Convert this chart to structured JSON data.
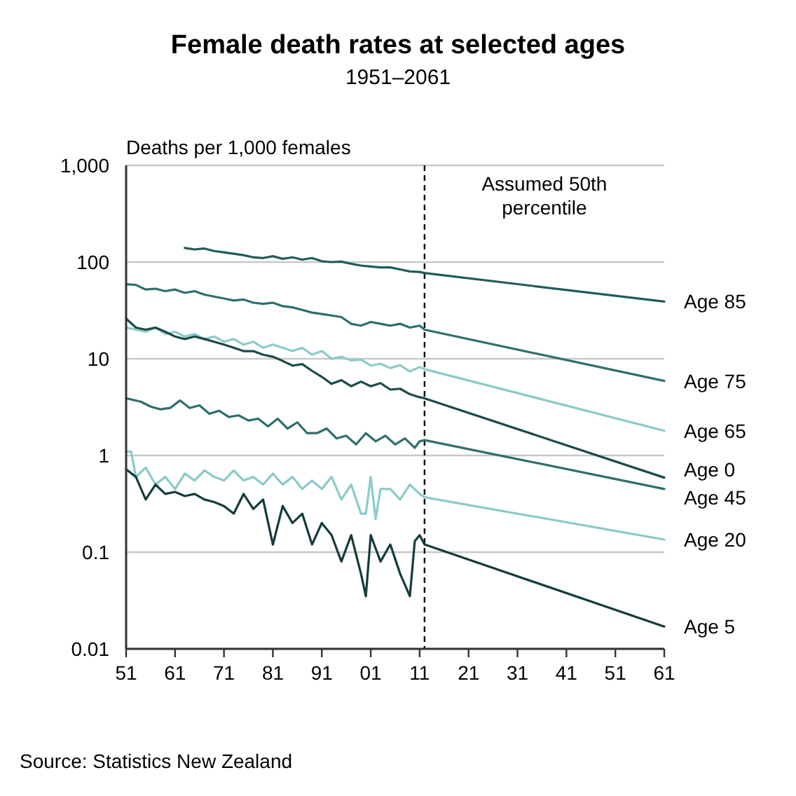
{
  "chart_data": {
    "type": "line",
    "title": "Female death rates at selected ages",
    "subtitle": "1951–2061",
    "ylabel": "Deaths per 1,000 females",
    "log": true,
    "grid": "y",
    "xlim": [
      1951,
      2061
    ],
    "xticks": [
      {
        "value": 1951,
        "label": "51"
      },
      {
        "value": 1961,
        "label": "61"
      },
      {
        "value": 1971,
        "label": "71"
      },
      {
        "value": 1981,
        "label": "81"
      },
      {
        "value": 1991,
        "label": "91"
      },
      {
        "value": 2001,
        "label": "01"
      },
      {
        "value": 2011,
        "label": "11"
      },
      {
        "value": 2021,
        "label": "21"
      },
      {
        "value": 2031,
        "label": "31"
      },
      {
        "value": 2041,
        "label": "41"
      },
      {
        "value": 2051,
        "label": "51"
      },
      {
        "value": 2061,
        "label": "61"
      }
    ],
    "ylim": [
      0.01,
      1000
    ],
    "yticks": [
      0.01,
      0.1,
      1,
      10,
      100,
      {
        "value": 1000,
        "label": "1,000"
      }
    ],
    "ref_lines": [
      {
        "axis": "x",
        "value": 2012,
        "label": "Assumed 50th percentile",
        "line_style": "dashed",
        "color": "#000000"
      }
    ],
    "annotations": [
      "Source: Statistics New Zealand"
    ],
    "series": [
      {
        "name": "Age 85",
        "color": "#1f5c5c",
        "x": [
          1963,
          1965,
          1967,
          1969,
          1971,
          1973,
          1975,
          1977,
          1979,
          1981,
          1983,
          1985,
          1987,
          1989,
          1991,
          1993,
          1995,
          1997,
          1999,
          2001,
          2003,
          2005,
          2007,
          2009,
          2011,
          2012,
          2061
        ],
        "values": [
          140,
          135,
          138,
          130,
          126,
          122,
          118,
          112,
          110,
          115,
          108,
          112,
          106,
          110,
          102,
          100,
          101,
          96,
          92,
          90,
          88,
          88,
          84,
          80,
          79,
          77,
          39
        ]
      },
      {
        "name": "Age 75",
        "color": "#2f6e6e",
        "x": [
          1951,
          1953,
          1955,
          1957,
          1959,
          1961,
          1963,
          1965,
          1967,
          1969,
          1971,
          1973,
          1975,
          1977,
          1979,
          1981,
          1983,
          1985,
          1987,
          1989,
          1991,
          1993,
          1995,
          1997,
          1999,
          2001,
          2003,
          2005,
          2007,
          2009,
          2011,
          2012,
          2061
        ],
        "values": [
          59,
          58,
          52,
          53,
          50,
          52,
          48,
          50,
          46,
          44,
          42,
          40,
          41,
          38,
          37,
          38,
          35,
          34,
          32,
          30,
          29,
          28,
          27,
          23,
          22,
          24,
          23,
          22,
          23,
          21,
          22,
          20,
          5.9
        ]
      },
      {
        "name": "Age 65",
        "color": "#8ccaca",
        "x": [
          1951,
          1953,
          1955,
          1957,
          1959,
          1961,
          1963,
          1965,
          1967,
          1969,
          1971,
          1973,
          1975,
          1977,
          1979,
          1981,
          1983,
          1985,
          1987,
          1989,
          1991,
          1993,
          1995,
          1997,
          1999,
          2001,
          2003,
          2005,
          2007,
          2009,
          2011,
          2012,
          2061
        ],
        "values": [
          21,
          20,
          19,
          21,
          18,
          19,
          17,
          18,
          16,
          17,
          15,
          16,
          14,
          15,
          13,
          14,
          13,
          12,
          13,
          11,
          12,
          10,
          10.5,
          9.6,
          9.8,
          8.5,
          8.9,
          8,
          8.6,
          7.4,
          8.2,
          7.8,
          1.8
        ]
      },
      {
        "name": "Age 0",
        "color": "#1a4a4a",
        "x": [
          1951,
          1953,
          1955,
          1957,
          1959,
          1961,
          1963,
          1965,
          1967,
          1969,
          1971,
          1973,
          1975,
          1977,
          1979,
          1981,
          1983,
          1985,
          1987,
          1989,
          1991,
          1993,
          1995,
          1997,
          1999,
          2001,
          2003,
          2005,
          2007,
          2009,
          2011,
          2012,
          2061
        ],
        "values": [
          26,
          21,
          20,
          21,
          19,
          17,
          16,
          17,
          16,
          15,
          14,
          13,
          12,
          12,
          11,
          10.5,
          9.5,
          8.5,
          8.8,
          7.5,
          6.5,
          5.5,
          6,
          5.2,
          5.8,
          5.2,
          5.6,
          4.8,
          4.9,
          4.3,
          4,
          3.9,
          0.59
        ]
      },
      {
        "name": "Age 45",
        "color": "#2f6e6e",
        "x": [
          1951,
          1954,
          1956,
          1958,
          1960,
          1962,
          1964,
          1966,
          1968,
          1970,
          1972,
          1974,
          1976,
          1978,
          1980,
          1982,
          1984,
          1986,
          1988,
          1990,
          1992,
          1994,
          1996,
          1998,
          2000,
          2002,
          2004,
          2006,
          2008,
          2010,
          2011,
          2012,
          2061
        ],
        "values": [
          3.9,
          3.6,
          3.2,
          3,
          3.1,
          3.7,
          3.1,
          3.3,
          2.7,
          2.9,
          2.5,
          2.6,
          2.3,
          2.4,
          2,
          2.4,
          1.9,
          2.2,
          1.7,
          1.7,
          1.9,
          1.5,
          1.6,
          1.3,
          1.7,
          1.4,
          1.6,
          1.3,
          1.5,
          1.2,
          1.4,
          1.44,
          0.45
        ]
      },
      {
        "name": "Age 20",
        "color": "#8ccaca",
        "x": [
          1951,
          1952,
          1953,
          1955,
          1957,
          1959,
          1961,
          1963,
          1965,
          1967,
          1969,
          1971,
          1973,
          1975,
          1977,
          1979,
          1981,
          1983,
          1985,
          1987,
          1989,
          1991,
          1993,
          1995,
          1997,
          1999,
          2000,
          2001,
          2002,
          2003,
          2005,
          2007,
          2009,
          2011,
          2012,
          2061
        ],
        "values": [
          1.1,
          1.1,
          0.6,
          0.75,
          0.5,
          0.6,
          0.45,
          0.65,
          0.55,
          0.7,
          0.6,
          0.55,
          0.7,
          0.55,
          0.6,
          0.5,
          0.65,
          0.5,
          0.6,
          0.45,
          0.55,
          0.45,
          0.6,
          0.35,
          0.5,
          0.25,
          0.25,
          0.6,
          0.22,
          0.45,
          0.45,
          0.35,
          0.5,
          0.4,
          0.37,
          0.135
        ]
      },
      {
        "name": "Age 5",
        "color": "#143c3c",
        "x": [
          1951,
          1953,
          1955,
          1957,
          1959,
          1961,
          1963,
          1965,
          1967,
          1969,
          1971,
          1973,
          1975,
          1977,
          1979,
          1981,
          1983,
          1985,
          1987,
          1989,
          1991,
          1993,
          1995,
          1997,
          1999,
          2000,
          2001,
          2003,
          2005,
          2007,
          2009,
          2010,
          2011,
          2012,
          2061
        ],
        "values": [
          0.72,
          0.6,
          0.35,
          0.5,
          0.4,
          0.42,
          0.38,
          0.4,
          0.35,
          0.33,
          0.3,
          0.25,
          0.4,
          0.28,
          0.35,
          0.12,
          0.3,
          0.2,
          0.25,
          0.12,
          0.2,
          0.15,
          0.08,
          0.15,
          0.06,
          0.035,
          0.15,
          0.08,
          0.12,
          0.06,
          0.035,
          0.13,
          0.15,
          0.12,
          0.017
        ]
      }
    ]
  }
}
